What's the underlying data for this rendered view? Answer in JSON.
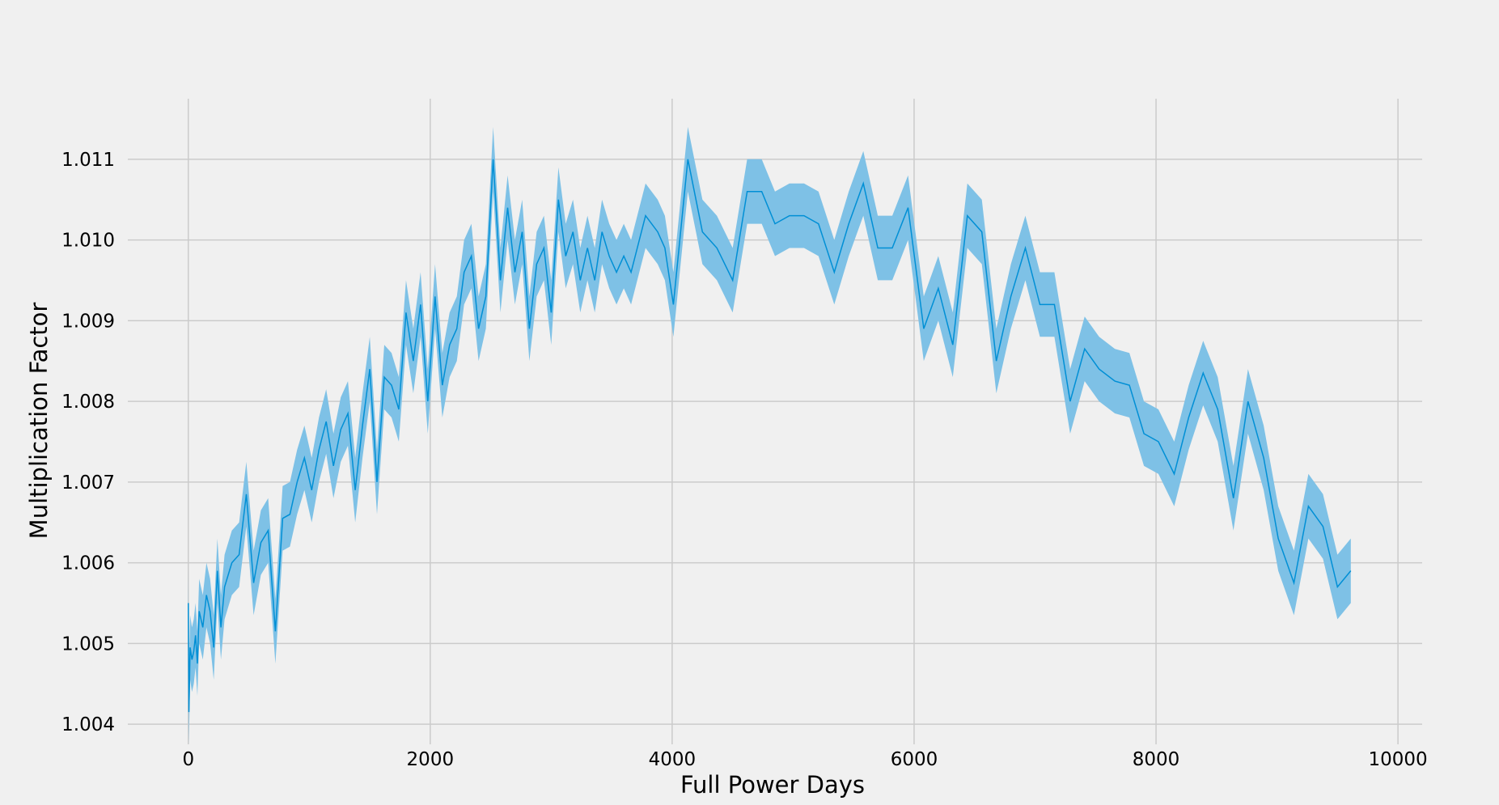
{
  "chart_data": {
    "type": "line",
    "title": "",
    "xlabel": "Full Power Days",
    "ylabel": "Multiplication Factor",
    "xlim": [
      -500,
      10200
    ],
    "ylim": [
      1.00375,
      1.01175
    ],
    "xticks": [
      0,
      2000,
      4000,
      6000,
      8000,
      10000
    ],
    "xtick_labels": [
      "0",
      "2000",
      "4000",
      "6000",
      "8000",
      "10000"
    ],
    "yticks": [
      1.004,
      1.005,
      1.006,
      1.007,
      1.008,
      1.009,
      1.01,
      1.011
    ],
    "ytick_labels": [
      "1.004",
      "1.005",
      "1.006",
      "1.007",
      "1.008",
      "1.009",
      "1.010",
      "1.011"
    ],
    "grid": true,
    "legend": "none",
    "colors": {
      "line": "#008fd5",
      "band": "#7ec1e6",
      "background": "#f0f0f0",
      "grid": "#cbcbcb"
    },
    "band_halfwidth": 0.0004,
    "series": [
      {
        "x": [
          0,
          5,
          15,
          30,
          45,
          60,
          75,
          90,
          120,
          150,
          180,
          210,
          240,
          270,
          300,
          360,
          420,
          480,
          540,
          600,
          660,
          720,
          780,
          840,
          900,
          960,
          1020,
          1080,
          1140,
          1200,
          1260,
          1320,
          1380,
          1440,
          1500,
          1560,
          1620,
          1680,
          1740,
          1800,
          1860,
          1920,
          1980,
          2040,
          2100,
          2160,
          2220,
          2280,
          2340,
          2400,
          2460,
          2520,
          2580,
          2640,
          2700,
          2760,
          2820,
          2880,
          2940,
          3000,
          3060,
          3120,
          3180,
          3240,
          3300,
          3360,
          3420,
          3480,
          3540,
          3600,
          3660,
          3780,
          3880,
          3940,
          4010,
          4130,
          4250,
          4370,
          4500,
          4620,
          4740,
          4850,
          4970,
          5090,
          5210,
          5340,
          5460,
          5580,
          5700,
          5820,
          5950,
          6080,
          6200,
          6320,
          6440,
          6560,
          6680,
          6800,
          6920,
          7040,
          7160,
          7290,
          7410,
          7530,
          7660,
          7780,
          7900,
          8020,
          8150,
          8270,
          8390,
          8510,
          8640,
          8760,
          8890,
          9010,
          9140,
          9260,
          9380,
          9500,
          9610
        ],
        "y": [
          1.0055,
          1.00415,
          1.00495,
          1.0048,
          1.0049,
          1.0051,
          1.00475,
          1.0054,
          1.0052,
          1.0056,
          1.0054,
          1.00495,
          1.0059,
          1.0052,
          1.0057,
          1.006,
          1.0061,
          1.00685,
          1.00575,
          1.00625,
          1.0064,
          1.00515,
          1.00655,
          1.0066,
          1.007,
          1.0073,
          1.0069,
          1.0074,
          1.00775,
          1.0072,
          1.00765,
          1.00785,
          1.0069,
          1.0077,
          1.0084,
          1.007,
          1.0083,
          1.0082,
          1.0079,
          1.0091,
          1.0085,
          1.0092,
          1.008,
          1.0093,
          1.0082,
          1.0087,
          1.0089,
          1.0096,
          1.0098,
          1.0089,
          1.0093,
          1.011,
          1.0095,
          1.0104,
          1.0096,
          1.0101,
          1.0089,
          1.0097,
          1.0099,
          1.0091,
          1.0105,
          1.0098,
          1.0101,
          1.0095,
          1.0099,
          1.0095,
          1.0101,
          1.0098,
          1.0096,
          1.0098,
          1.0096,
          1.0103,
          1.0101,
          1.0099,
          1.0092,
          1.011,
          1.0101,
          1.0099,
          1.0095,
          1.0106,
          1.0106,
          1.0102,
          1.0103,
          1.0103,
          1.0102,
          1.0096,
          1.0102,
          1.0107,
          1.0099,
          1.0099,
          1.0104,
          1.0089,
          1.0094,
          1.0087,
          1.0103,
          1.0101,
          1.0085,
          1.0093,
          1.0099,
          1.0092,
          1.0092,
          1.008,
          1.00865,
          1.0084,
          1.00825,
          1.0082,
          1.0076,
          1.0075,
          1.0071,
          1.0078,
          1.00835,
          1.0079,
          1.0068,
          1.008,
          1.0073,
          1.0063,
          1.00575,
          1.0067,
          1.00645,
          1.0057,
          1.0059
        ]
      }
    ]
  }
}
